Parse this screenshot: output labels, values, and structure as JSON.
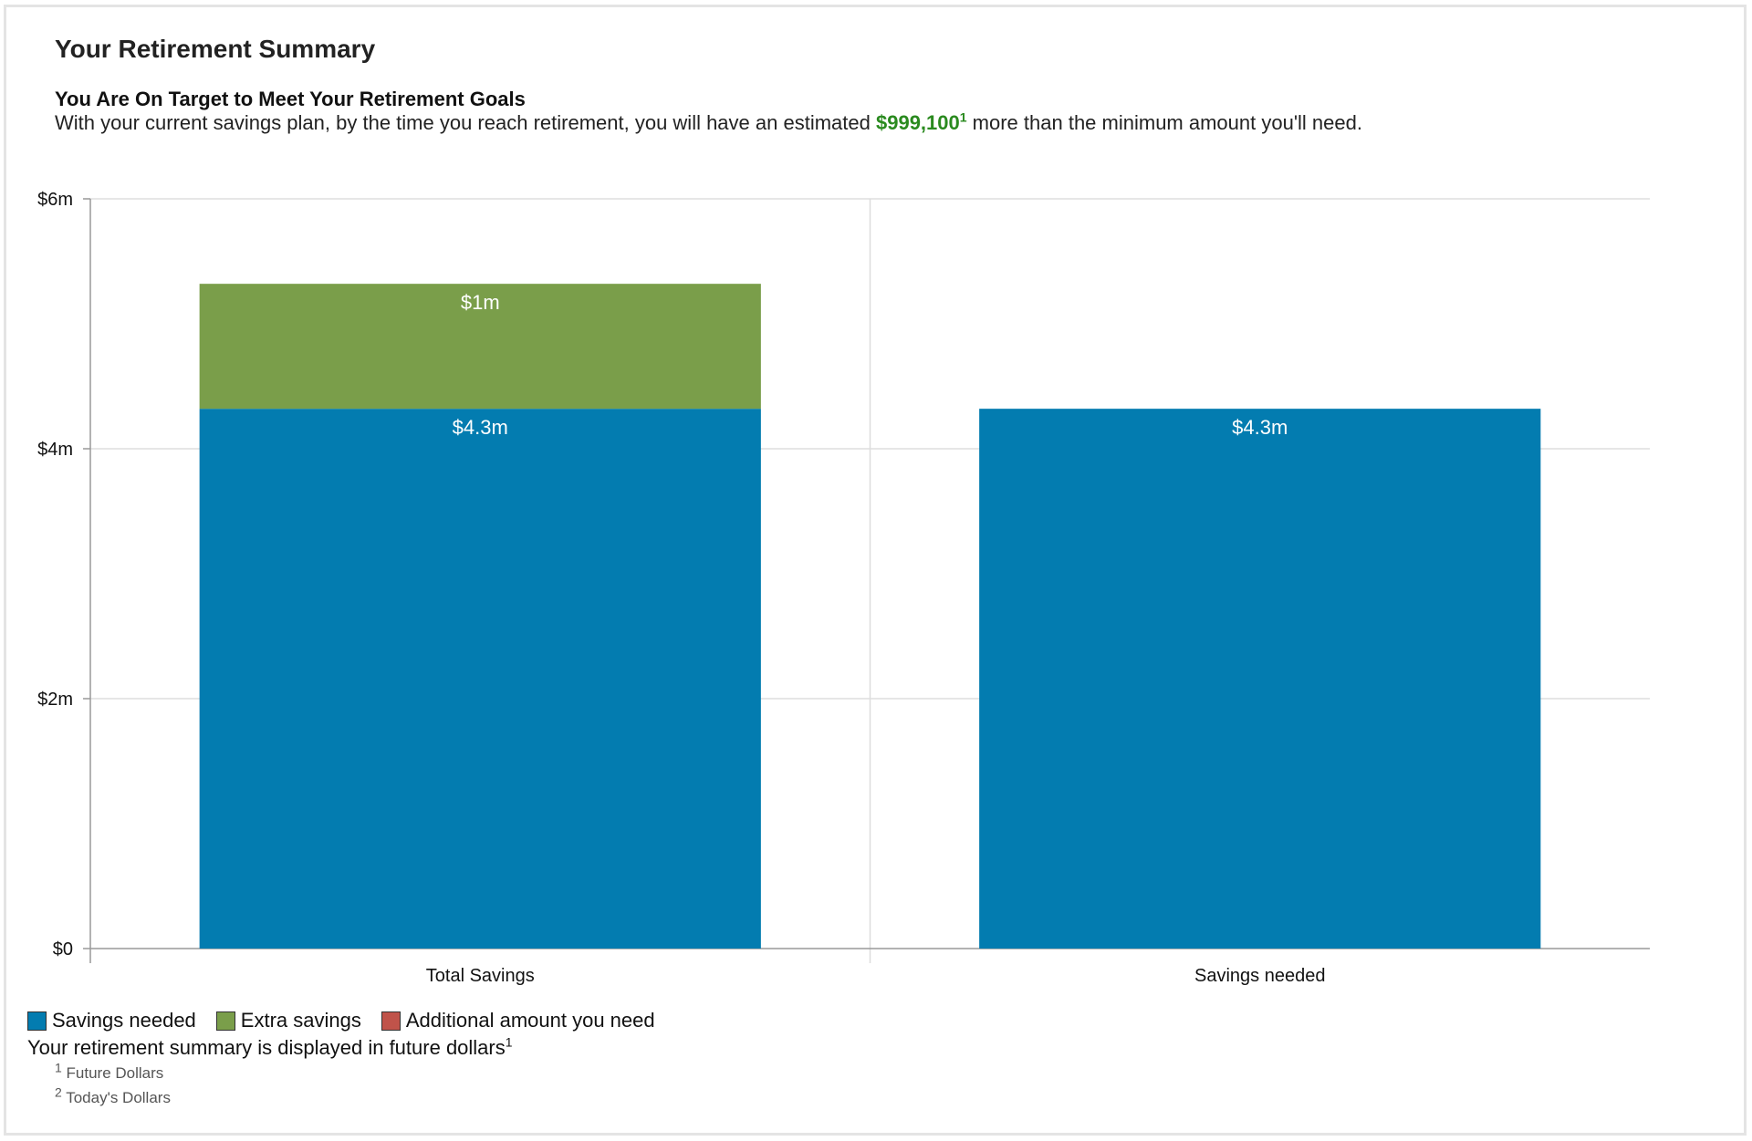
{
  "header": {
    "title": "Your Retirement Summary",
    "subtitle": "You Are On Target to Meet Your Retirement Goals",
    "desc_before": "With your current savings plan, by the time you reach retirement, you will have an estimated",
    "amount": "$999,100",
    "amount_sup": "1",
    "desc_after": "more than the minimum amount you'll need."
  },
  "colors": {
    "savings_needed": "#037cb0",
    "extra_savings": "#7a9e4a",
    "additional_amount": "#c0534a",
    "highlight_amount": "#2a8a1f",
    "gridline": "#dddddd",
    "axis": "#999999"
  },
  "chart_data": {
    "type": "bar",
    "stacked": true,
    "categories": [
      "Total Savings",
      "Savings needed"
    ],
    "ylim": [
      0,
      6
    ],
    "y_ticks": [
      0,
      2,
      4,
      6
    ],
    "y_tick_labels": [
      "$0",
      "$2m",
      "$4m",
      "$6m"
    ],
    "grid": true,
    "legend_position": "bottom-left",
    "series": [
      {
        "name": "Savings needed",
        "color_key": "savings_needed",
        "values": [
          4.32,
          4.32
        ],
        "labels": [
          "$4.3m",
          "$4.3m"
        ]
      },
      {
        "name": "Extra savings",
        "color_key": "extra_savings",
        "values": [
          1.0,
          0
        ],
        "labels": [
          "$1m",
          ""
        ]
      },
      {
        "name": "Additional amount you need",
        "color_key": "additional_amount",
        "values": [
          0,
          0
        ],
        "labels": [
          "",
          ""
        ]
      }
    ]
  },
  "legend": {
    "items": [
      {
        "label": "Savings needed",
        "color_key": "savings_needed"
      },
      {
        "label": "Extra savings",
        "color_key": "extra_savings"
      },
      {
        "label": "Additional amount you need",
        "color_key": "additional_amount"
      }
    ]
  },
  "footer": {
    "note": "Your retirement summary is displayed in future dollars",
    "note_sup": "1",
    "footnotes": [
      {
        "marker": "1",
        "text": "Future Dollars"
      },
      {
        "marker": "2",
        "text": "Today's Dollars"
      }
    ]
  }
}
